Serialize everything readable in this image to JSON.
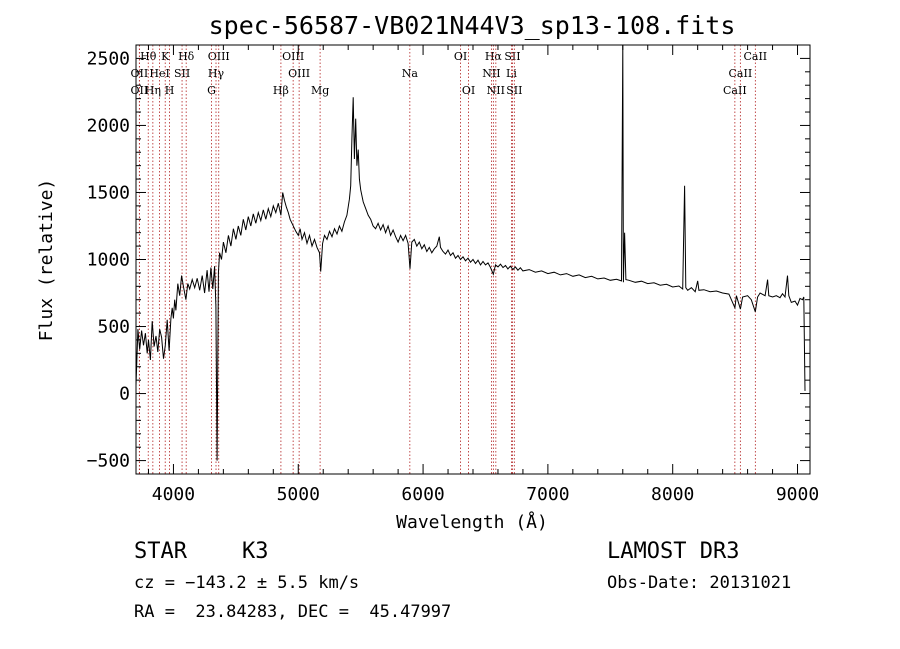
{
  "chart_data": {
    "type": "line",
    "title": "spec-56587-VB021N44V3_sp13-108.fits",
    "xlabel": "Wavelength (Å)",
    "ylabel": "Flux (relative)",
    "xlim": [
      3700,
      9100
    ],
    "ylim": [
      -600,
      2600
    ],
    "x_ticks": [
      4000,
      5000,
      6000,
      7000,
      8000,
      9000
    ],
    "y_ticks": [
      -500,
      0,
      500,
      1000,
      1500,
      2000,
      2500
    ],
    "grid": false,
    "line_color": "#000000",
    "marker_color": "#b22222",
    "spectrum": [
      [
        3700,
        60
      ],
      [
        3715,
        480
      ],
      [
        3730,
        330
      ],
      [
        3745,
        470
      ],
      [
        3760,
        360
      ],
      [
        3775,
        450
      ],
      [
        3790,
        300
      ],
      [
        3800,
        400
      ],
      [
        3815,
        250
      ],
      [
        3830,
        540
      ],
      [
        3845,
        350
      ],
      [
        3860,
        430
      ],
      [
        3875,
        310
      ],
      [
        3890,
        480
      ],
      [
        3905,
        420
      ],
      [
        3920,
        260
      ],
      [
        3935,
        360
      ],
      [
        3950,
        550
      ],
      [
        3965,
        320
      ],
      [
        3980,
        560
      ],
      [
        3990,
        640
      ],
      [
        4000,
        560
      ],
      [
        4010,
        700
      ],
      [
        4020,
        620
      ],
      [
        4035,
        820
      ],
      [
        4050,
        730
      ],
      [
        4065,
        880
      ],
      [
        4080,
        800
      ],
      [
        4100,
        700
      ],
      [
        4115,
        820
      ],
      [
        4130,
        780
      ],
      [
        4150,
        850
      ],
      [
        4170,
        790
      ],
      [
        4190,
        860
      ],
      [
        4210,
        770
      ],
      [
        4230,
        880
      ],
      [
        4250,
        750
      ],
      [
        4270,
        920
      ],
      [
        4285,
        760
      ],
      [
        4300,
        940
      ],
      [
        4315,
        780
      ],
      [
        4330,
        950
      ],
      [
        4340,
        650
      ],
      [
        4350,
        -500
      ],
      [
        4360,
        900
      ],
      [
        4370,
        1050
      ],
      [
        4385,
        1000
      ],
      [
        4400,
        1130
      ],
      [
        4420,
        1050
      ],
      [
        4440,
        1180
      ],
      [
        4460,
        1100
      ],
      [
        4480,
        1230
      ],
      [
        4500,
        1150
      ],
      [
        4520,
        1250
      ],
      [
        4540,
        1180
      ],
      [
        4560,
        1300
      ],
      [
        4580,
        1220
      ],
      [
        4600,
        1320
      ],
      [
        4620,
        1250
      ],
      [
        4640,
        1340
      ],
      [
        4660,
        1270
      ],
      [
        4680,
        1350
      ],
      [
        4700,
        1290
      ],
      [
        4720,
        1370
      ],
      [
        4740,
        1300
      ],
      [
        4760,
        1380
      ],
      [
        4780,
        1320
      ],
      [
        4800,
        1400
      ],
      [
        4820,
        1350
      ],
      [
        4840,
        1420
      ],
      [
        4861,
        1330
      ],
      [
        4875,
        1500
      ],
      [
        4890,
        1440
      ],
      [
        4905,
        1390
      ],
      [
        4920,
        1350
      ],
      [
        4935,
        1300
      ],
      [
        4950,
        1270
      ],
      [
        4965,
        1240
      ],
      [
        4980,
        1210
      ],
      [
        5000,
        1180
      ],
      [
        5015,
        1230
      ],
      [
        5030,
        1150
      ],
      [
        5050,
        1200
      ],
      [
        5070,
        1120
      ],
      [
        5090,
        1180
      ],
      [
        5110,
        1100
      ],
      [
        5130,
        1150
      ],
      [
        5150,
        1090
      ],
      [
        5170,
        1050
      ],
      [
        5180,
        910
      ],
      [
        5195,
        1120
      ],
      [
        5210,
        1180
      ],
      [
        5230,
        1150
      ],
      [
        5250,
        1210
      ],
      [
        5270,
        1170
      ],
      [
        5290,
        1230
      ],
      [
        5310,
        1190
      ],
      [
        5330,
        1250
      ],
      [
        5350,
        1210
      ],
      [
        5370,
        1280
      ],
      [
        5390,
        1330
      ],
      [
        5410,
        1450
      ],
      [
        5420,
        1550
      ],
      [
        5430,
        1900
      ],
      [
        5440,
        2210
      ],
      [
        5450,
        1750
      ],
      [
        5460,
        2050
      ],
      [
        5470,
        1700
      ],
      [
        5480,
        1820
      ],
      [
        5490,
        1600
      ],
      [
        5500,
        1520
      ],
      [
        5520,
        1430
      ],
      [
        5540,
        1380
      ],
      [
        5560,
        1330
      ],
      [
        5580,
        1300
      ],
      [
        5600,
        1250
      ],
      [
        5620,
        1230
      ],
      [
        5640,
        1270
      ],
      [
        5660,
        1220
      ],
      [
        5680,
        1260
      ],
      [
        5700,
        1200
      ],
      [
        5720,
        1250
      ],
      [
        5740,
        1180
      ],
      [
        5760,
        1220
      ],
      [
        5780,
        1170
      ],
      [
        5800,
        1130
      ],
      [
        5820,
        1180
      ],
      [
        5840,
        1140
      ],
      [
        5860,
        1180
      ],
      [
        5880,
        1120
      ],
      [
        5895,
        930
      ],
      [
        5910,
        1130
      ],
      [
        5930,
        1150
      ],
      [
        5950,
        1100
      ],
      [
        5970,
        1130
      ],
      [
        5990,
        1080
      ],
      [
        6010,
        1110
      ],
      [
        6030,
        1060
      ],
      [
        6050,
        1090
      ],
      [
        6070,
        1050
      ],
      [
        6090,
        1080
      ],
      [
        6110,
        1100
      ],
      [
        6130,
        1170
      ],
      [
        6140,
        1090
      ],
      [
        6160,
        1060
      ],
      [
        6180,
        1040
      ],
      [
        6200,
        1070
      ],
      [
        6220,
        1030
      ],
      [
        6240,
        1050
      ],
      [
        6260,
        1010
      ],
      [
        6280,
        1030
      ],
      [
        6300,
        1000
      ],
      [
        6320,
        1020
      ],
      [
        6340,
        990
      ],
      [
        6360,
        1010
      ],
      [
        6380,
        980
      ],
      [
        6400,
        1000
      ],
      [
        6420,
        970
      ],
      [
        6440,
        995
      ],
      [
        6460,
        960
      ],
      [
        6480,
        985
      ],
      [
        6500,
        960
      ],
      [
        6520,
        975
      ],
      [
        6540,
        940
      ],
      [
        6563,
        890
      ],
      [
        6580,
        960
      ],
      [
        6600,
        945
      ],
      [
        6620,
        965
      ],
      [
        6640,
        940
      ],
      [
        6660,
        955
      ],
      [
        6680,
        930
      ],
      [
        6700,
        950
      ],
      [
        6720,
        925
      ],
      [
        6740,
        945
      ],
      [
        6760,
        920
      ],
      [
        6780,
        938
      ],
      [
        6800,
        915
      ],
      [
        6850,
        925
      ],
      [
        6900,
        905
      ],
      [
        6950,
        915
      ],
      [
        7000,
        895
      ],
      [
        7050,
        905
      ],
      [
        7100,
        885
      ],
      [
        7150,
        895
      ],
      [
        7200,
        875
      ],
      [
        7250,
        885
      ],
      [
        7300,
        865
      ],
      [
        7350,
        875
      ],
      [
        7400,
        855
      ],
      [
        7450,
        862
      ],
      [
        7500,
        845
      ],
      [
        7550,
        852
      ],
      [
        7590,
        840
      ],
      [
        7600,
        2600
      ],
      [
        7605,
        830
      ],
      [
        7615,
        1200
      ],
      [
        7625,
        850
      ],
      [
        7650,
        845
      ],
      [
        7700,
        830
      ],
      [
        7750,
        838
      ],
      [
        7800,
        820
      ],
      [
        7850,
        826
      ],
      [
        7900,
        808
      ],
      [
        7950,
        815
      ],
      [
        8000,
        795
      ],
      [
        8050,
        802
      ],
      [
        8080,
        780
      ],
      [
        8095,
        1550
      ],
      [
        8105,
        790
      ],
      [
        8120,
        770
      ],
      [
        8150,
        790
      ],
      [
        8180,
        760
      ],
      [
        8200,
        840
      ],
      [
        8210,
        770
      ],
      [
        8250,
        775
      ],
      [
        8300,
        760
      ],
      [
        8350,
        765
      ],
      [
        8400,
        750
      ],
      [
        8450,
        742
      ],
      [
        8498,
        640
      ],
      [
        8510,
        730
      ],
      [
        8542,
        630
      ],
      [
        8560,
        720
      ],
      [
        8600,
        730
      ],
      [
        8630,
        700
      ],
      [
        8662,
        610
      ],
      [
        8680,
        720
      ],
      [
        8700,
        750
      ],
      [
        8740,
        730
      ],
      [
        8760,
        850
      ],
      [
        8770,
        730
      ],
      [
        8800,
        720
      ],
      [
        8830,
        730
      ],
      [
        8860,
        715
      ],
      [
        8880,
        745
      ],
      [
        8900,
        720
      ],
      [
        8920,
        880
      ],
      [
        8930,
        730
      ],
      [
        8950,
        680
      ],
      [
        8980,
        690
      ],
      [
        9000,
        660
      ],
      [
        9020,
        710
      ],
      [
        9040,
        700
      ],
      [
        9050,
        720
      ],
      [
        9060,
        20
      ]
    ],
    "line_markers": [
      {
        "label": "Hθ",
        "x": 3798,
        "row": 0
      },
      {
        "label": "OII",
        "x": 3727,
        "row": 1
      },
      {
        "label": "OII",
        "x": 3727,
        "row": 2
      },
      {
        "label": "K",
        "x": 3934,
        "row": 0
      },
      {
        "label": "HeI",
        "x": 3889,
        "row": 1
      },
      {
        "label": "Hη",
        "x": 3835,
        "row": 2
      },
      {
        "label": "H",
        "x": 3969,
        "row": 2
      },
      {
        "label": "SII",
        "x": 4069,
        "row": 1
      },
      {
        "label": "Hδ",
        "x": 4102,
        "row": 0
      },
      {
        "label": "OIII",
        "x": 4363,
        "row": 0
      },
      {
        "label": "Hγ",
        "x": 4341,
        "row": 1
      },
      {
        "label": "G",
        "x": 4305,
        "row": 2
      },
      {
        "label": "Hβ",
        "x": 4861,
        "row": 2
      },
      {
        "label": "OIII",
        "x": 4959,
        "row": 0
      },
      {
        "label": "OIII",
        "x": 5007,
        "row": 1
      },
      {
        "label": "Mg",
        "x": 5175,
        "row": 2
      },
      {
        "label": "Na",
        "x": 5894,
        "row": 1
      },
      {
        "label": "OI",
        "x": 6300,
        "row": 0
      },
      {
        "label": "OI",
        "x": 6364,
        "row": 2
      },
      {
        "label": "Hα",
        "x": 6563,
        "row": 0
      },
      {
        "label": "SII",
        "x": 6716,
        "row": 0
      },
      {
        "label": "NII",
        "x": 6548,
        "row": 1
      },
      {
        "label": "Li",
        "x": 6708,
        "row": 1
      },
      {
        "label": "NII",
        "x": 6583,
        "row": 2
      },
      {
        "label": "SII",
        "x": 6731,
        "row": 2
      },
      {
        "label": "CaII",
        "x": 8662,
        "row": 0
      },
      {
        "label": "CaII",
        "x": 8542,
        "row": 1
      },
      {
        "label": "CaII",
        "x": 8498,
        "row": 2
      }
    ]
  },
  "info": {
    "object_class": "STAR",
    "subclass": "K3",
    "survey": "LAMOST DR3",
    "redshift": "cz = −143.2 ± 5.5 km/s",
    "obs_date": "Obs-Date: 20131021",
    "coords": "RA =  23.84283, DEC =  45.47997"
  }
}
